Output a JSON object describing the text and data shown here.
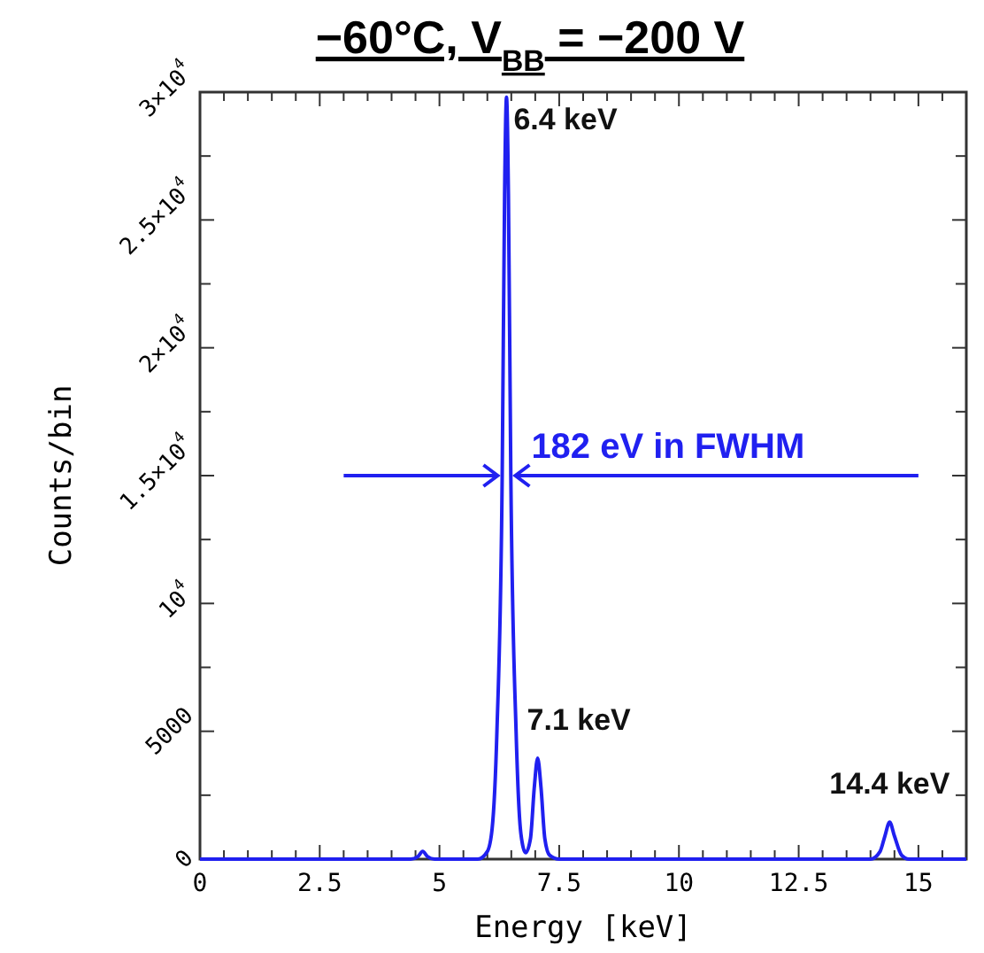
{
  "chart_data": {
    "type": "line",
    "title": "−60°C, V$_{BB}$ = −200 V",
    "xlabel": "Energy [keV]",
    "ylabel": "Counts/bin",
    "xlim": [
      0,
      16
    ],
    "ylim": [
      0,
      30000
    ],
    "xticks": [
      0,
      {
        "value": 0.5,
        "label": null
      },
      {
        "value": 1,
        "label": null
      },
      {
        "value": 1.5,
        "label": null
      },
      {
        "value": 2,
        "label": null
      },
      2.5,
      {
        "value": 3,
        "label": null
      },
      {
        "value": 3.5,
        "label": null
      },
      {
        "value": 4,
        "label": null
      },
      {
        "value": 4.5,
        "label": null
      },
      5,
      {
        "value": 5.5,
        "label": null
      },
      {
        "value": 6,
        "label": null
      },
      {
        "value": 6.5,
        "label": null
      },
      {
        "value": 7,
        "label": null
      },
      7.5,
      {
        "value": 8,
        "label": null
      },
      {
        "value": 8.5,
        "label": null
      },
      {
        "value": 9,
        "label": null
      },
      {
        "value": 9.5,
        "label": null
      },
      10,
      {
        "value": 10.5,
        "label": null
      },
      {
        "value": 11,
        "label": null
      },
      {
        "value": 11.5,
        "label": null
      },
      {
        "value": 12,
        "label": null
      },
      12.5,
      {
        "value": 13,
        "label": null
      },
      {
        "value": 13.5,
        "label": null
      },
      {
        "value": 14,
        "label": null
      },
      {
        "value": 14.5,
        "label": null
      },
      15,
      {
        "value": 15.5,
        "label": null
      }
    ],
    "yticks": [
      0,
      {
        "value": 2500,
        "label": null
      },
      5000,
      {
        "value": 7500,
        "label": null
      },
      {
        "value": 10000,
        "label": "10$^{4}$"
      },
      {
        "value": 12500,
        "label": null
      },
      {
        "value": 15000,
        "label": "1.5×10$^{4}$"
      },
      {
        "value": 17500,
        "label": null
      },
      {
        "value": 20000,
        "label": "2×10$^{4}$"
      },
      {
        "value": 22500,
        "label": null
      },
      {
        "value": 25000,
        "label": "2.5×10$^{4}$"
      },
      {
        "value": 27500,
        "label": null
      },
      {
        "value": 30000,
        "label": "3×10$^{4}$"
      }
    ],
    "marker": "none",
    "line_style": "solid",
    "series": [
      {
        "color": "#2020f0",
        "x": [
          0,
          4.4,
          4.55,
          4.65,
          4.75,
          4.9,
          5.8,
          6.0,
          6.1,
          6.2,
          6.31,
          6.36,
          6.4,
          6.44,
          6.49,
          6.6,
          6.7,
          6.8,
          6.9,
          6.98,
          7.05,
          7.12,
          7.2,
          7.3,
          7.5,
          14.0,
          14.2,
          14.3,
          14.4,
          14.5,
          14.65,
          14.8,
          16
        ],
        "values": [
          0,
          0,
          100,
          300,
          100,
          0,
          0,
          300,
          1200,
          5000,
          15000,
          26000,
          29800,
          26000,
          15000,
          5000,
          1000,
          250,
          800,
          2800,
          3950,
          2800,
          800,
          150,
          0,
          0,
          300,
          900,
          1450,
          900,
          150,
          0,
          0
        ]
      }
    ],
    "annotations": [
      {
        "text": "6.4 keV",
        "x": 6.4,
        "y": 29800
      },
      {
        "text": "7.1 keV",
        "x": 7.05,
        "y": 3950
      },
      {
        "text": "14.4 keV",
        "x": 14.4,
        "y": 1450
      },
      {
        "text": "182 eV in FWHM",
        "x": 6.4,
        "y": 15000
      }
    ]
  }
}
